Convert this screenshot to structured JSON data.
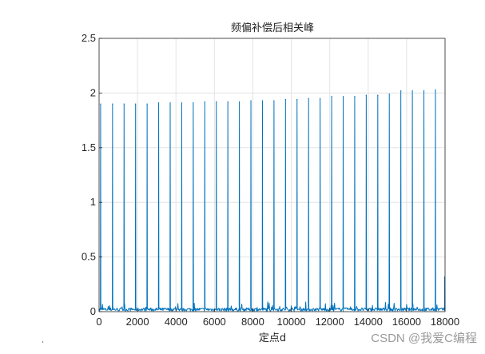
{
  "chart_data": {
    "type": "line",
    "title": "频偏补偿后相关峰",
    "xlabel": "定点d",
    "ylabel": "",
    "xlim": [
      0,
      18000
    ],
    "ylim": [
      0,
      2.5
    ],
    "xticks": [
      0,
      2000,
      4000,
      6000,
      8000,
      10000,
      12000,
      14000,
      16000,
      18000
    ],
    "yticks": [
      0,
      0.5,
      1,
      1.5,
      2,
      2.5
    ],
    "xtick_labels": [
      "0",
      "2000",
      "4000",
      "6000",
      "8000",
      "10000",
      "12000",
      "14000",
      "16000",
      "18000"
    ],
    "ytick_labels": [
      "0",
      "0.5",
      "1",
      "1.5",
      "2",
      "2.5"
    ],
    "grid": true,
    "line_color": "#0072BD",
    "peaks": {
      "x": [
        80,
        700,
        1300,
        1900,
        2500,
        3100,
        3700,
        4300,
        4900,
        5500,
        6100,
        6700,
        7300,
        7900,
        8500,
        9100,
        9700,
        10300,
        10900,
        11500,
        12100,
        12700,
        13300,
        13900,
        14500,
        15100,
        15700,
        16300,
        16900,
        17500
      ],
      "y": [
        1.9,
        1.9,
        1.9,
        1.9,
        1.9,
        1.91,
        1.91,
        1.91,
        1.91,
        1.92,
        1.92,
        1.92,
        1.92,
        1.93,
        1.93,
        1.93,
        1.94,
        1.94,
        1.95,
        1.95,
        1.97,
        1.97,
        1.97,
        1.98,
        1.98,
        1.99,
        2.02,
        2.02,
        2.02,
        2.03
      ]
    },
    "end_segment": {
      "x": 17980,
      "y": 0.32
    },
    "noise_level": 0.03
  },
  "watermark": "CSDN @我爱C编程"
}
